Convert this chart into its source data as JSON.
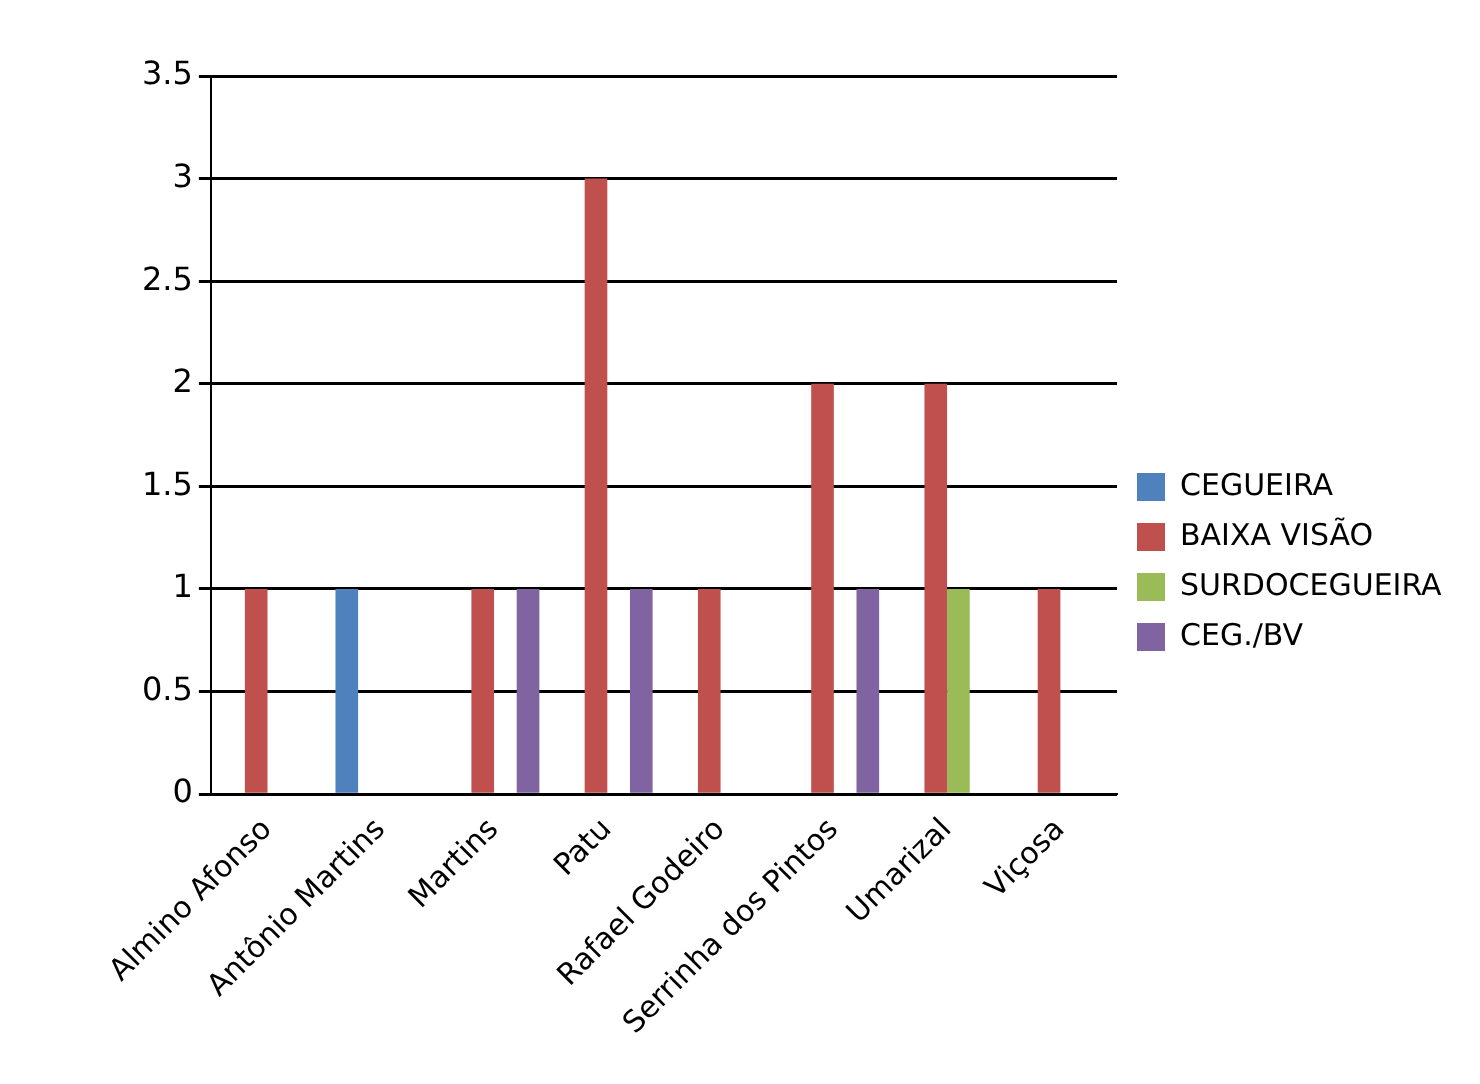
{
  "chart_data": {
    "type": "bar",
    "categories": [
      "Almino Afonso",
      "Antônio Martins",
      "Martins",
      "Patu",
      "Rafael Godeiro",
      "Serrinha dos Pintos",
      "Umarizal",
      "Viçosa"
    ],
    "series": [
      {
        "name": "CEGUEIRA",
        "color": "#4f81bd",
        "values": [
          null,
          1,
          null,
          null,
          null,
          null,
          null,
          null
        ]
      },
      {
        "name": "BAIXA VISÃO",
        "color": "#c0504d",
        "values": [
          1,
          null,
          1,
          3,
          1,
          2,
          2,
          1
        ]
      },
      {
        "name": "SURDOCEGUEIRA",
        "color": "#9bbb59",
        "values": [
          null,
          null,
          null,
          null,
          null,
          null,
          1,
          null
        ]
      },
      {
        "name": "CEG./BV",
        "color": "#8064a2",
        "values": [
          null,
          null,
          1,
          1,
          null,
          1,
          null,
          null
        ]
      }
    ],
    "ylim": [
      0,
      3.5
    ],
    "yticks": [
      0,
      0.5,
      1,
      1.5,
      2,
      2.5,
      3,
      3.5
    ],
    "grid": "y",
    "legend": "right"
  }
}
